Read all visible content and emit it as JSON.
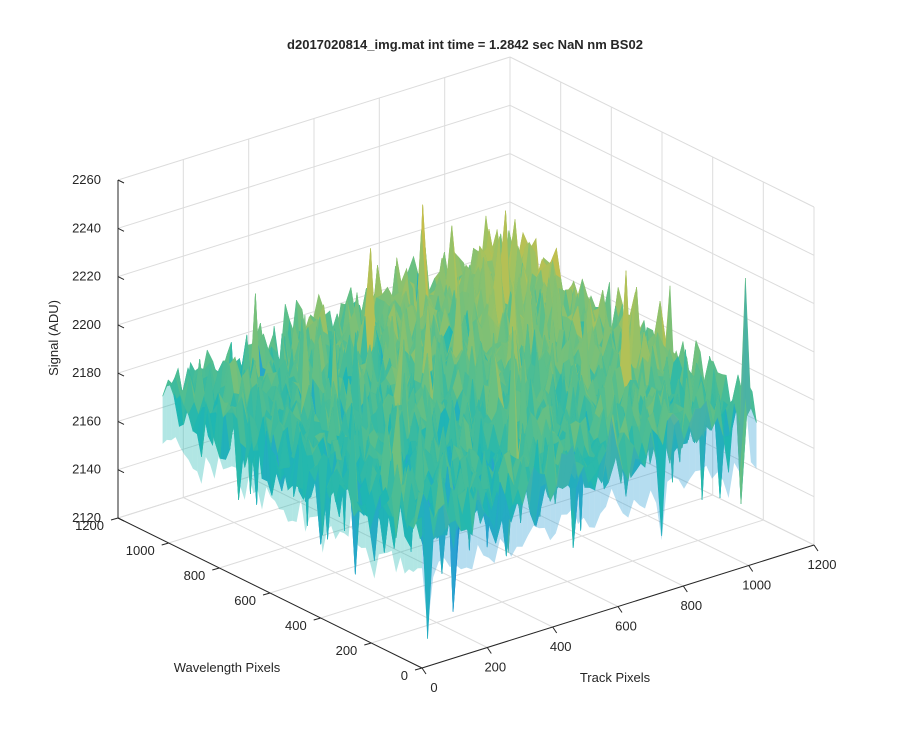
{
  "chart_data": {
    "type": "surface",
    "title": "d2017020814_img.mat int time = 1.2842 sec  NaN nm BS02",
    "xlabel": "Track Pixels",
    "ylabel": "Wavelength Pixels",
    "zlabel": "Signal (ADU)",
    "xlim": [
      0,
      1200
    ],
    "ylim": [
      0,
      1200
    ],
    "zlim": [
      2120,
      2260
    ],
    "x_ticks": [
      "0",
      "200",
      "400",
      "600",
      "800",
      "1000",
      "1200"
    ],
    "y_ticks": [
      "0",
      "200",
      "400",
      "600",
      "800",
      "1000",
      "1200"
    ],
    "z_ticks": [
      "2120",
      "2140",
      "2160",
      "2180",
      "2200",
      "2220",
      "2240",
      "2260"
    ],
    "surface_extent": {
      "x": [
        0,
        1024
      ],
      "y": [
        0,
        1024
      ]
    },
    "corner_means": {
      "origin": 2175,
      "x_max": 2185,
      "y_max": 2180,
      "xy_max": 2198
    },
    "noise_amplitude": 14,
    "colormap": [
      "#0072bd",
      "#2b9fd5",
      "#1fb7b2",
      "#5cbf8a",
      "#a9c25c",
      "#e2b93b",
      "#f0c63d"
    ],
    "grid": true
  }
}
